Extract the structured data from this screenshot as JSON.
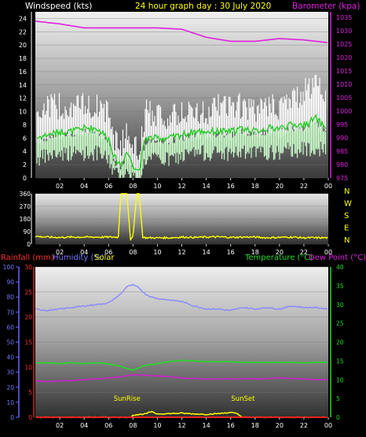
{
  "header": {
    "wind_label": "Windspeed (kts)",
    "title": "24 hour graph day : 30 July 2020",
    "baro_label": "Barometer (kpa)"
  },
  "bottom_header": {
    "rain_label": "Rainfall (mm)",
    "humidity_label": "Humidity (%)",
    "solar_label": "Solar",
    "temp_label": "Temperature (°C)",
    "dew_label": "Dew Point (°C)"
  },
  "colors": {
    "wind_gust": "#ffffff",
    "wind_avg": "#22cc22",
    "wind_min": "#ccffcc",
    "barometer": "#e020e0",
    "direction": "#ffff00",
    "rain_axis": "#e02020",
    "humidity_axis": "#6666ff",
    "humidity": "#8888ff",
    "temperature": "#22dd22",
    "dewpoint": "#cc22cc",
    "solar": "#ffff00",
    "rainfall": "#ff2020"
  },
  "chart_data": [
    {
      "type": "line",
      "name": "wind-barometer",
      "x_ticks": [
        "02",
        "04",
        "06",
        "08",
        "10",
        "12",
        "14",
        "16",
        "18",
        "20",
        "22",
        "00"
      ],
      "x_hours": [
        0,
        24
      ],
      "ylim_left": [
        0,
        25
      ],
      "y_ticks_left": [
        0,
        2,
        4,
        6,
        8,
        10,
        12,
        14,
        16,
        18,
        20,
        22,
        24
      ],
      "ylim_right": [
        975,
        1037
      ],
      "y_ticks_right": [
        975,
        980,
        985,
        990,
        995,
        1000,
        1005,
        1010,
        1015,
        1020,
        1025,
        1030,
        1035
      ],
      "series": [
        {
          "key": "gust",
          "hours": [
            0,
            1,
            2,
            3,
            4,
            5,
            6,
            6.5,
            7,
            7.5,
            8,
            8.5,
            9,
            10,
            11,
            12,
            13,
            14,
            15,
            16,
            17,
            18,
            19,
            20,
            21,
            22,
            23,
            23.5,
            24
          ],
          "values": [
            9,
            10,
            10,
            10,
            10,
            10,
            9,
            5,
            4,
            6,
            5,
            2,
            9,
            9,
            8,
            9,
            9,
            9,
            10,
            10,
            10,
            9,
            10,
            10,
            11,
            12,
            14,
            12,
            11
          ]
        },
        {
          "key": "avg",
          "hours": [
            0,
            1,
            2,
            3,
            4,
            5,
            6,
            6.5,
            7,
            7.5,
            8,
            8.5,
            9,
            10,
            11,
            12,
            13,
            14,
            15,
            16,
            17,
            18,
            19,
            20,
            21,
            22,
            23,
            23.5,
            24
          ],
          "values": [
            6,
            6.5,
            7,
            7,
            7.5,
            7.5,
            6,
            3,
            2,
            4,
            2,
            1,
            6,
            6,
            6,
            6.5,
            7,
            7,
            7,
            7,
            7.5,
            7,
            7.5,
            7.5,
            8,
            8,
            9,
            8,
            7.5
          ]
        },
        {
          "key": "min",
          "hours": [
            0,
            1,
            2,
            3,
            4,
            5,
            6,
            6.5,
            7,
            7.5,
            8,
            8.5,
            9,
            10,
            11,
            12,
            13,
            14,
            15,
            16,
            17,
            18,
            19,
            20,
            21,
            22,
            23,
            23.5,
            24
          ],
          "values": [
            3,
            3.5,
            4,
            4,
            4,
            4,
            3,
            1,
            0.5,
            1,
            0.5,
            0,
            3,
            3,
            3,
            3.5,
            4,
            4,
            4,
            4,
            4,
            4,
            4,
            4,
            4.5,
            4.5,
            5,
            4.5,
            4
          ]
        },
        {
          "key": "barometer",
          "hours": [
            0,
            2,
            4,
            6,
            8,
            10,
            12,
            14,
            16,
            18,
            20,
            22,
            24
          ],
          "values": [
            1033.5,
            1032.5,
            1031,
            1031,
            1031,
            1031,
            1030.5,
            1027.5,
            1026,
            1026,
            1027,
            1026.5,
            1025.5
          ]
        }
      ]
    },
    {
      "type": "line",
      "name": "wind-direction",
      "x_ticks": [
        "02",
        "04",
        "06",
        "08",
        "10",
        "12",
        "14",
        "16",
        "18",
        "20",
        "22",
        "00"
      ],
      "ylim": [
        0,
        360
      ],
      "y_ticks": [
        0,
        90,
        180,
        270,
        360
      ],
      "compass_labels": [
        "N",
        "W",
        "S",
        "E",
        "N"
      ],
      "hours": [
        0,
        1,
        2,
        3,
        4,
        5,
        6,
        6.8,
        7,
        7.5,
        7.8,
        8,
        8.3,
        8.5,
        8.8,
        9,
        10,
        11,
        12,
        13,
        14,
        15,
        16,
        17,
        18,
        19,
        20,
        21,
        22,
        23,
        24
      ],
      "values": [
        55,
        50,
        48,
        50,
        50,
        50,
        50,
        50,
        360,
        360,
        30,
        50,
        360,
        360,
        50,
        45,
        45,
        45,
        50,
        48,
        50,
        52,
        48,
        50,
        50,
        45,
        48,
        50,
        45,
        45,
        45
      ]
    },
    {
      "type": "line",
      "name": "temperature-humidity",
      "x_ticks": [
        "02",
        "04",
        "06",
        "08",
        "10",
        "12",
        "14",
        "16",
        "18",
        "20",
        "22",
        "00"
      ],
      "ylim_humidity": [
        0,
        100
      ],
      "y_ticks_humidity": [
        0,
        10,
        20,
        30,
        40,
        50,
        60,
        70,
        80,
        90,
        100
      ],
      "ylim_rain": [
        0,
        30
      ],
      "y_ticks_rain": [
        0,
        5,
        10,
        15,
        20,
        25,
        30
      ],
      "ylim_temp": [
        0,
        40
      ],
      "y_ticks_temp": [
        0,
        5,
        10,
        15,
        20,
        25,
        30,
        35,
        40
      ],
      "annotations": [
        {
          "text": "SunRise",
          "hour": 7.0
        },
        {
          "text": "SunSet",
          "hour": 16.5
        }
      ],
      "series": [
        {
          "key": "humidity",
          "hours": [
            0,
            1,
            2,
            3,
            4,
            5,
            6,
            7,
            7.5,
            8,
            8.5,
            9,
            9.5,
            10,
            11,
            12,
            13,
            14,
            15,
            16,
            17,
            18,
            19,
            20,
            21,
            22,
            23,
            24
          ],
          "values": [
            72,
            71,
            72,
            73,
            74,
            75,
            76,
            82,
            87,
            88,
            86,
            82,
            80,
            79,
            78,
            77,
            74,
            72,
            72,
            71,
            73,
            72,
            73,
            72,
            74,
            73,
            73,
            72
          ]
        },
        {
          "key": "temperature",
          "hours": [
            0,
            1,
            2,
            3,
            4,
            5,
            6,
            7,
            8,
            8.5,
            9,
            10,
            11,
            12,
            13,
            14,
            15,
            16,
            17,
            18,
            19,
            20,
            21,
            22,
            23,
            24
          ],
          "values": [
            14.5,
            14.5,
            14.3,
            14.5,
            14.3,
            14.5,
            14.2,
            13.5,
            12.5,
            13.2,
            13.8,
            14.3,
            14.8,
            15.2,
            15.0,
            14.8,
            14.8,
            14.8,
            14.6,
            14.6,
            14.6,
            14.6,
            14.6,
            14.5,
            14.6,
            14.6
          ]
        },
        {
          "key": "dewpoint",
          "hours": [
            0,
            1,
            2,
            3,
            4,
            5,
            6,
            7,
            8,
            9,
            10,
            11,
            12,
            13,
            14,
            15,
            16,
            17,
            18,
            19,
            20,
            21,
            22,
            23,
            24
          ],
          "values": [
            9.7,
            9.5,
            9.7,
            9.8,
            10.0,
            10.2,
            10.5,
            10.8,
            11.3,
            11.2,
            11.0,
            10.8,
            10.5,
            10.3,
            10.2,
            10.2,
            10.2,
            10.3,
            10.2,
            10.3,
            10.5,
            10.3,
            10.2,
            10.0,
            10.0
          ]
        },
        {
          "key": "solar",
          "hours": [
            0,
            7.8,
            8.0,
            9,
            9.5,
            10,
            11,
            12,
            13,
            14,
            15,
            16,
            16.5,
            17,
            24
          ],
          "values": [
            0,
            0,
            0.6,
            0.9,
            1.5,
            0.9,
            1.0,
            1.1,
            0.9,
            0.8,
            1.0,
            1.3,
            1.0,
            0,
            0
          ]
        },
        {
          "key": "rainfall",
          "hours": [
            0,
            24
          ],
          "values": [
            0,
            0
          ]
        }
      ]
    }
  ]
}
